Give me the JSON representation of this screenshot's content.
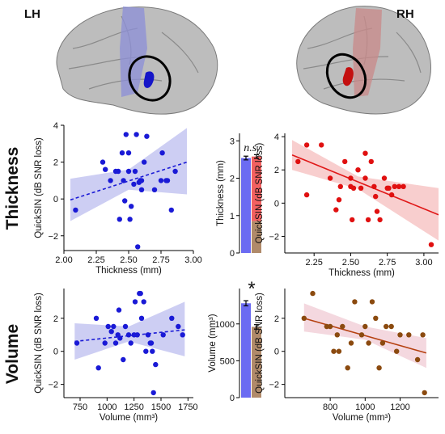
{
  "brain": {
    "left_label": "LH",
    "right_label": "RH"
  },
  "rows": {
    "thickness_label": "Thickness",
    "volume_label": "Volume"
  },
  "colors": {
    "lh_points": "#1a1ad6",
    "lh_band": "#c8c9f2",
    "rh_points": "#e01010",
    "rh_band": "#f7c9c9",
    "vol_rh_points": "#8b4a0f",
    "vol_rh_line": "#b5400f",
    "vol_rh_band": "#f3d4dc",
    "bar_blue": "#6b6bf2",
    "bar_red": "#f26060",
    "bar_brown": "#b08a6a"
  },
  "chart_data": [
    {
      "id": "thick_lh",
      "type": "scatter",
      "xlabel": "Thickness (mm)",
      "ylabel": "QuickSIN (dB SNR loss)",
      "xlim": [
        2.0,
        3.0
      ],
      "ylim": [
        -2.8,
        4.0
      ],
      "xticks": [
        2.0,
        2.25,
        2.5,
        2.75,
        3.0
      ],
      "xtick_labels": [
        "2.00",
        "2.25",
        "2.50",
        "2.75",
        "3.00"
      ],
      "yticks": [
        -2,
        0,
        2,
        4
      ],
      "yticklabels": [
        "−2",
        "0",
        "2",
        "4"
      ],
      "x": [
        2.09,
        2.3,
        2.32,
        2.36,
        2.4,
        2.42,
        2.43,
        2.45,
        2.46,
        2.47,
        2.48,
        2.5,
        2.5,
        2.51,
        2.52,
        2.54,
        2.55,
        2.56,
        2.57,
        2.58,
        2.59,
        2.6,
        2.6,
        2.62,
        2.64,
        2.7,
        2.75,
        2.76,
        2.79,
        2.8,
        2.83,
        2.86
      ],
      "y": [
        -0.6,
        2.0,
        1.6,
        1.0,
        1.5,
        1.5,
        -1.1,
        2.5,
        1.0,
        -0.1,
        3.5,
        2.5,
        1.5,
        -1.1,
        -0.4,
        0.8,
        1.5,
        3.5,
        -2.6,
        0.9,
        1.0,
        1.0,
        0.5,
        2.0,
        3.4,
        0.5,
        1.0,
        2.5,
        1.0,
        1.0,
        -0.6,
        1.5
      ],
      "fit": {
        "x": [
          2.05,
          2.95
        ],
        "y": [
          -0.05,
          2.0
        ],
        "style": "dashed"
      },
      "band": {
        "x": [
          2.05,
          2.5,
          2.95
        ],
        "lower": [
          -1.2,
          0.5,
          0.25
        ],
        "upper": [
          1.1,
          1.6,
          3.85
        ]
      }
    },
    {
      "id": "thick_bar",
      "type": "bar",
      "ylabel": "Thickness (mm)",
      "ylim": [
        0,
        3.2
      ],
      "yticks": [
        0,
        1,
        2,
        3
      ],
      "yticklabels": [
        "0",
        "1",
        "2",
        "3"
      ],
      "categories": [
        "LH",
        "RH"
      ],
      "values": [
        2.54,
        2.58
      ],
      "errors": [
        0.05,
        0.05
      ],
      "annotation": "n.s."
    },
    {
      "id": "thick_rh",
      "type": "scatter",
      "xlabel": "Thickness (mm)",
      "ylabel": "QuickSIN (dB SNR loss)",
      "xlim": [
        2.05,
        3.1
      ],
      "ylim": [
        -3.0,
        4.2
      ],
      "xticks": [
        2.25,
        2.5,
        2.75,
        3.0
      ],
      "xtick_labels": [
        "2.25",
        "2.50",
        "2.75",
        "3.00"
      ],
      "yticks": [
        -2,
        0,
        2,
        4
      ],
      "yticklabels": [
        "−2",
        "0",
        "2",
        "4"
      ],
      "x": [
        2.14,
        2.2,
        2.2,
        2.3,
        2.36,
        2.4,
        2.42,
        2.43,
        2.46,
        2.5,
        2.5,
        2.51,
        2.52,
        2.55,
        2.57,
        2.6,
        2.6,
        2.62,
        2.64,
        2.66,
        2.67,
        2.68,
        2.7,
        2.73,
        2.75,
        2.76,
        2.78,
        2.8,
        2.83,
        2.86,
        3.05
      ],
      "y": [
        2.5,
        0.5,
        3.5,
        3.5,
        1.5,
        -0.4,
        0.2,
        1.0,
        2.5,
        1.5,
        1.0,
        -1.0,
        0.9,
        2.0,
        0.9,
        3.0,
        1.5,
        -1.0,
        2.5,
        1.0,
        0.4,
        -0.5,
        -1.0,
        1.5,
        0.9,
        0.9,
        0.5,
        1.0,
        1.0,
        1.0,
        -2.5
      ],
      "fit": {
        "x": [
          2.1,
          3.1
        ],
        "y": [
          2.9,
          -0.7
        ],
        "style": "solid"
      },
      "band": {
        "x": [
          2.1,
          2.55,
          3.1
        ],
        "lower": [
          2.0,
          0.85,
          -2.25
        ],
        "upper": [
          3.8,
          1.6,
          0.9
        ]
      }
    },
    {
      "id": "vol_lh",
      "type": "scatter",
      "xlabel": "Volume (mm³)",
      "ylabel": "QuickSIN (dB SNR loss)",
      "xlim": [
        600,
        1800
      ],
      "ylim": [
        -2.8,
        3.8
      ],
      "xticks": [
        750,
        1000,
        1250,
        1500,
        1750
      ],
      "xtick_labels": [
        "750",
        "1000",
        "1250",
        "1500",
        "1750"
      ],
      "yticks": [
        -2,
        0,
        2
      ],
      "yticklabels": [
        "−2",
        "0",
        "2"
      ],
      "x": [
        720,
        900,
        920,
        980,
        1010,
        1040,
        1060,
        1080,
        1100,
        1110,
        1120,
        1150,
        1170,
        1200,
        1220,
        1250,
        1260,
        1280,
        1300,
        1310,
        1320,
        1340,
        1360,
        1380,
        1400,
        1410,
        1420,
        1430,
        1450,
        1520,
        1600,
        1660,
        1700
      ],
      "y": [
        0.5,
        2.0,
        -1.0,
        0.5,
        1.5,
        1.2,
        1.5,
        0.5,
        1.0,
        2.5,
        0.8,
        -0.5,
        1.5,
        1.0,
        0.5,
        1.0,
        3.0,
        1.0,
        3.5,
        3.5,
        2.0,
        3.0,
        0.0,
        1.0,
        0.5,
        0.5,
        0.0,
        -2.5,
        -0.8,
        1.0,
        2.0,
        1.5,
        1.0
      ],
      "fit": {
        "x": [
          700,
          1720
        ],
        "y": [
          0.6,
          1.3
        ],
        "style": "dashed"
      },
      "band": {
        "x": [
          700,
          1200,
          1720
        ],
        "lower": [
          -0.5,
          0.6,
          -0.3
        ],
        "upper": [
          1.7,
          1.5,
          3.0
        ]
      }
    },
    {
      "id": "vol_bar",
      "type": "bar",
      "ylabel": "Volume (mm³)",
      "ylim": [
        0,
        1480
      ],
      "yticks": [
        0,
        500,
        1000
      ],
      "yticklabels": [
        "0",
        "500",
        "1000"
      ],
      "categories": [
        "LH",
        "RH"
      ],
      "values": [
        1280,
        960
      ],
      "errors": [
        35,
        30
      ],
      "annotation": "*"
    },
    {
      "id": "vol_rh",
      "type": "scatter",
      "xlabel": "Volume (mm³)",
      "ylabel": "QuickSIN (dB SNR loss)",
      "xlim": [
        540,
        1420
      ],
      "ylim": [
        -2.8,
        3.8
      ],
      "xticks": [
        800,
        1000,
        1200
      ],
      "xtick_labels": [
        "800",
        "1000",
        "1200"
      ],
      "yticks": [
        -2,
        0,
        2
      ],
      "yticklabels": [
        "−2",
        "0",
        "2"
      ],
      "x": [
        650,
        700,
        780,
        800,
        820,
        840,
        850,
        870,
        900,
        920,
        940,
        980,
        1000,
        1020,
        1040,
        1060,
        1080,
        1100,
        1120,
        1150,
        1180,
        1200,
        1250,
        1300,
        1330,
        1340
      ],
      "y": [
        2.0,
        3.5,
        1.5,
        1.5,
        0.0,
        1.0,
        0.0,
        1.5,
        -1.0,
        0.5,
        3.0,
        1.0,
        1.5,
        0.5,
        3.0,
        2.0,
        -1.0,
        0.5,
        1.5,
        1.5,
        0.0,
        1.0,
        1.0,
        -0.5,
        1.0,
        -2.5
      ],
      "fit": {
        "x": [
          650,
          1350
        ],
        "y": [
          2.0,
          -0.1
        ],
        "style": "solid"
      },
      "band": {
        "x": [
          650,
          1000,
          1350
        ],
        "lower": [
          1.2,
          0.7,
          -1.0
        ],
        "upper": [
          2.9,
          1.5,
          0.8
        ]
      }
    }
  ]
}
